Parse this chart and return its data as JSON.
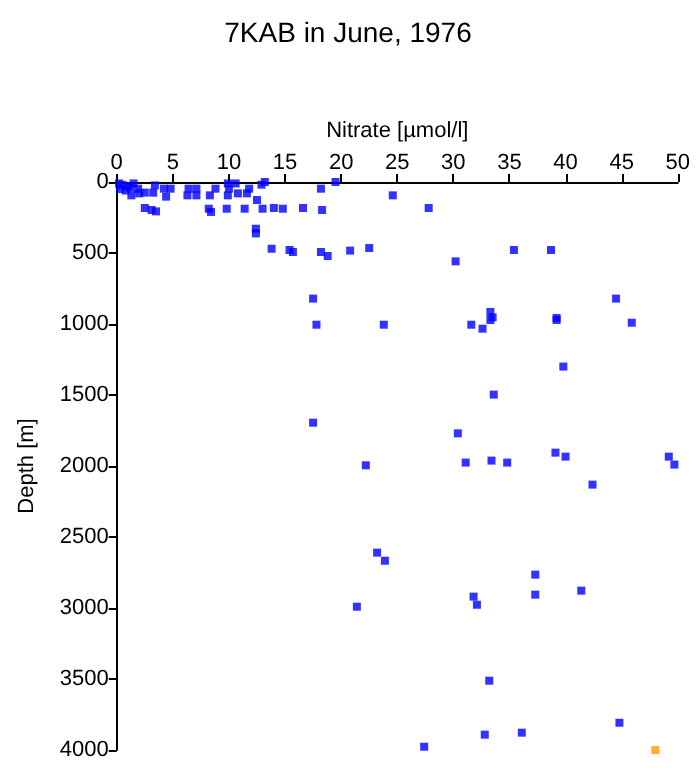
{
  "chart_data": {
    "type": "scatter",
    "title": "7KAB in June, 1976",
    "xlabel": "Nitrate [µmol/l]",
    "ylabel": "Depth [m]",
    "xlim": [
      0,
      50
    ],
    "xticks": [
      0,
      5,
      10,
      15,
      20,
      25,
      30,
      35,
      40,
      45,
      50
    ],
    "ylim": [
      4000,
      0
    ],
    "yticks": [
      0,
      500,
      1000,
      1500,
      2000,
      2500,
      3000,
      3500,
      4000
    ],
    "grid": false,
    "marker": "square",
    "series": [
      {
        "color": "#0000ff",
        "x": [
          0.2,
          0.5,
          1,
          1.5,
          0.3,
          0.8,
          1.2,
          2,
          1.9,
          1.3,
          2.5,
          3.25,
          3.4,
          4.2,
          4.8,
          4.4,
          6.4,
          7.1,
          6.3,
          7.1,
          8.3,
          8.8,
          9.9,
          10,
          10.6,
          9.9,
          10.8,
          11.8,
          11.6,
          12.5,
          12.9,
          13.2,
          18.2,
          19.5,
          24.6,
          2.5,
          3.1,
          3.5,
          8.2,
          8.4,
          9.8,
          11.4,
          13,
          14,
          14.8,
          16.6,
          18.3,
          27.8,
          12.4,
          12.4,
          13.8,
          15.4,
          15.7,
          18.2,
          18.8,
          20.8,
          22.5,
          30.2,
          35.4,
          38.7,
          17.5,
          44.5,
          33.3,
          33.5,
          39.2,
          17.8,
          23.8,
          31.6,
          32.6,
          33.3,
          39.2,
          45.9,
          39.8,
          33.6,
          17.5,
          30.4,
          22.2,
          31.1,
          33.4,
          34.8,
          39.1,
          40,
          42.4,
          49.2,
          49.7,
          23.2,
          23.9,
          37.3,
          31.8,
          37.3,
          32.1,
          21.4,
          41.4,
          33.2,
          44.8,
          32.8,
          36.1,
          27.4
        ],
        "values": [
          10,
          20,
          30,
          10,
          50,
          60,
          40,
          80,
          47,
          94,
          75,
          75,
          24,
          47,
          47,
          103,
          47,
          47,
          94,
          94,
          94,
          47,
          10,
          47,
          10,
          94,
          80,
          47,
          80,
          127,
          19,
          0,
          47,
          0,
          94,
          183,
          197,
          207,
          188,
          211,
          188,
          188,
          188,
          183,
          188,
          183,
          197,
          183,
          329,
          362,
          470,
          479,
          493,
          493,
          521,
          483,
          465,
          559,
          479,
          479,
          821,
          821,
          915,
          953,
          958,
          1005,
          1005,
          1005,
          1033,
          972,
          972,
          991,
          1300,
          1497,
          1695,
          1770,
          1995,
          1976,
          1962,
          1976,
          1906,
          1934,
          2131,
          1934,
          1990,
          2610,
          2667,
          2765,
          2920,
          2906,
          2977,
          2991,
          2878,
          3512,
          3808,
          3892,
          3878,
          3977
        ]
      },
      {
        "color": "#ff9900",
        "x": [
          48
        ],
        "values": [
          4000
        ]
      }
    ]
  }
}
